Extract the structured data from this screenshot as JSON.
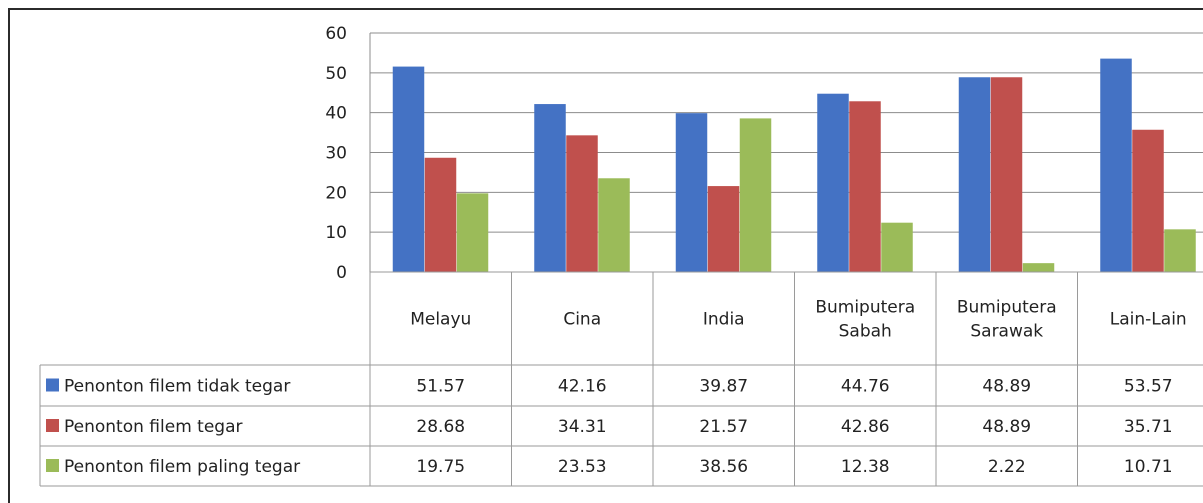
{
  "chart_data": {
    "type": "bar",
    "categories": [
      [
        "Melayu"
      ],
      [
        "Cina"
      ],
      [
        "India"
      ],
      [
        "Bumiputera",
        "Sabah"
      ],
      [
        "Bumiputera",
        "Sarawak"
      ],
      [
        "Lain-Lain"
      ]
    ],
    "series": [
      {
        "name": "Penonton filem tidak tegar",
        "color": "#4472C4",
        "values": [
          "51.57",
          "42.16",
          "39.87",
          "44.76",
          "48.89",
          "53.57"
        ]
      },
      {
        "name": "Penonton filem tegar",
        "color": "#C0504D",
        "values": [
          "28.68",
          "34.31",
          "21.57",
          "42.86",
          "48.89",
          "35.71"
        ]
      },
      {
        "name": "Penonton filem paling tegar",
        "color": "#9BBB59",
        "values": [
          "19.75",
          "23.53",
          "38.56",
          "12.38",
          "2.22",
          "10.71"
        ]
      }
    ],
    "y_ticks": [
      "0",
      "10",
      "20",
      "30",
      "40",
      "50",
      "60"
    ],
    "ylim": [
      0,
      60
    ],
    "grid": true,
    "legend": "data-table"
  }
}
